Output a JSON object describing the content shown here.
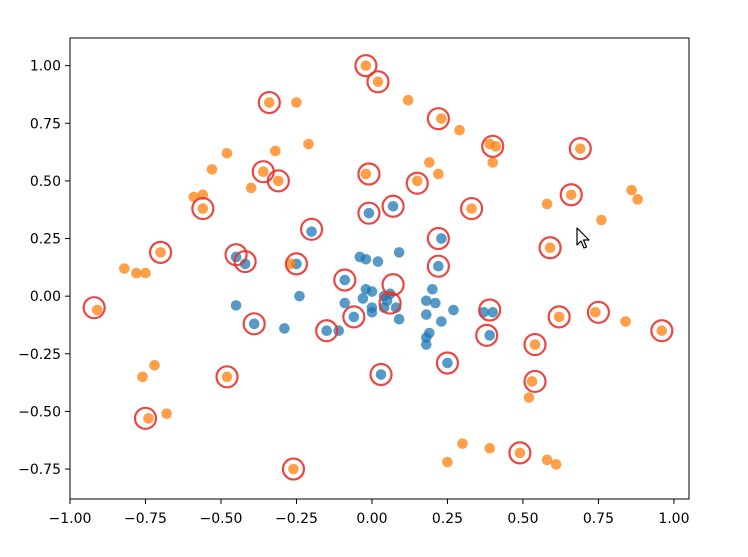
{
  "chart_data": {
    "type": "scatter",
    "title": "",
    "xlabel": "",
    "ylabel": "",
    "xlim": [
      -1.0,
      1.05
    ],
    "ylim": [
      -0.88,
      1.12
    ],
    "x_ticks": [
      -1.0,
      -0.75,
      -0.5,
      -0.25,
      0.0,
      0.25,
      0.5,
      0.75,
      1.0
    ],
    "x_tick_labels": [
      "−1.00",
      "−0.75",
      "−0.50",
      "−0.25",
      "0.00",
      "0.25",
      "0.50",
      "0.75",
      "1.00"
    ],
    "y_ticks": [
      -0.75,
      -0.5,
      -0.25,
      0.0,
      0.25,
      0.5,
      0.75,
      1.0
    ],
    "y_tick_labels": [
      "−0.75",
      "−0.50",
      "−0.25",
      "0.00",
      "0.25",
      "0.50",
      "0.75",
      "1.00"
    ],
    "colors": {
      "blue": "#1f77b4",
      "orange": "#ff7f0e",
      "ring": "#e8332e"
    },
    "series": [
      {
        "name": "blue",
        "color": "#1f77b4",
        "points": [
          [
            -0.45,
            0.17
          ],
          [
            -0.42,
            0.14
          ],
          [
            -0.39,
            -0.12
          ],
          [
            -0.45,
            -0.04
          ],
          [
            -0.25,
            0.14
          ],
          [
            -0.24,
            0.0
          ],
          [
            -0.29,
            -0.14
          ],
          [
            -0.2,
            0.28
          ],
          [
            -0.15,
            -0.15
          ],
          [
            -0.11,
            -0.15
          ],
          [
            -0.09,
            0.07
          ],
          [
            -0.09,
            -0.03
          ],
          [
            -0.06,
            -0.09
          ],
          [
            -0.04,
            0.17
          ],
          [
            -0.03,
            -0.01
          ],
          [
            -0.02,
            0.16
          ],
          [
            -0.01,
            0.36
          ],
          [
            -0.02,
            0.03
          ],
          [
            0.0,
            0.02
          ],
          [
            0.0,
            -0.05
          ],
          [
            0.0,
            -0.07
          ],
          [
            0.02,
            0.15
          ],
          [
            0.04,
            -0.05
          ],
          [
            0.04,
            0.0
          ],
          [
            0.05,
            -0.02
          ],
          [
            0.06,
            0.01
          ],
          [
            0.07,
            0.39
          ],
          [
            0.08,
            -0.05
          ],
          [
            0.09,
            -0.1
          ],
          [
            0.09,
            0.19
          ],
          [
            0.18,
            -0.08
          ],
          [
            0.18,
            -0.02
          ],
          [
            0.18,
            -0.18
          ],
          [
            0.18,
            -0.21
          ],
          [
            0.19,
            -0.16
          ],
          [
            0.2,
            0.03
          ],
          [
            0.21,
            -0.03
          ],
          [
            0.22,
            0.13
          ],
          [
            0.23,
            0.25
          ],
          [
            0.23,
            -0.11
          ],
          [
            0.25,
            -0.29
          ],
          [
            0.27,
            -0.06
          ],
          [
            0.37,
            -0.07
          ],
          [
            0.39,
            -0.17
          ],
          [
            0.4,
            -0.07
          ],
          [
            0.03,
            -0.34
          ]
        ]
      },
      {
        "name": "orange",
        "color": "#ff7f0e",
        "points": [
          [
            -0.91,
            -0.06
          ],
          [
            -0.82,
            0.12
          ],
          [
            -0.78,
            0.1
          ],
          [
            -0.76,
            -0.35
          ],
          [
            -0.75,
            0.1
          ],
          [
            -0.74,
            -0.53
          ],
          [
            -0.7,
            0.19
          ],
          [
            -0.72,
            -0.3
          ],
          [
            -0.68,
            -0.51
          ],
          [
            -0.59,
            0.43
          ],
          [
            -0.56,
            0.44
          ],
          [
            -0.56,
            0.38
          ],
          [
            -0.53,
            0.55
          ],
          [
            -0.48,
            0.62
          ],
          [
            -0.48,
            -0.35
          ],
          [
            -0.4,
            0.47
          ],
          [
            -0.36,
            0.54
          ],
          [
            -0.34,
            0.84
          ],
          [
            -0.31,
            0.5
          ],
          [
            -0.32,
            0.63
          ],
          [
            -0.27,
            0.14
          ],
          [
            -0.26,
            -0.75
          ],
          [
            -0.25,
            0.84
          ],
          [
            -0.21,
            0.66
          ],
          [
            -0.02,
            1.0
          ],
          [
            -0.02,
            0.53
          ],
          [
            0.02,
            0.93
          ],
          [
            0.12,
            0.85
          ],
          [
            0.15,
            0.5
          ],
          [
            0.19,
            0.58
          ],
          [
            0.22,
            0.53
          ],
          [
            0.23,
            0.77
          ],
          [
            0.25,
            -0.72
          ],
          [
            0.29,
            0.72
          ],
          [
            0.3,
            -0.64
          ],
          [
            0.33,
            0.38
          ],
          [
            0.39,
            0.66
          ],
          [
            0.39,
            -0.66
          ],
          [
            0.4,
            0.58
          ],
          [
            0.41,
            0.65
          ],
          [
            0.49,
            -0.68
          ],
          [
            0.52,
            -0.44
          ],
          [
            0.53,
            -0.37
          ],
          [
            0.54,
            -0.21
          ],
          [
            0.58,
            0.4
          ],
          [
            0.59,
            0.21
          ],
          [
            0.58,
            -0.71
          ],
          [
            0.61,
            -0.73
          ],
          [
            0.62,
            -0.09
          ],
          [
            0.66,
            0.44
          ],
          [
            0.69,
            0.64
          ],
          [
            0.74,
            -0.07
          ],
          [
            0.76,
            0.33
          ],
          [
            0.84,
            -0.11
          ],
          [
            0.86,
            0.46
          ],
          [
            0.88,
            0.42
          ],
          [
            0.96,
            -0.15
          ]
        ]
      }
    ],
    "highlighted": [
      [
        -0.92,
        -0.05
      ],
      [
        -0.7,
        0.19
      ],
      [
        -0.75,
        -0.53
      ],
      [
        -0.56,
        0.38
      ],
      [
        -0.48,
        -0.35
      ],
      [
        -0.45,
        0.18
      ],
      [
        -0.42,
        0.15
      ],
      [
        -0.39,
        -0.12
      ],
      [
        -0.34,
        0.84
      ],
      [
        -0.36,
        0.54
      ],
      [
        -0.31,
        0.5
      ],
      [
        -0.25,
        0.14
      ],
      [
        -0.26,
        -0.75
      ],
      [
        -0.2,
        0.29
      ],
      [
        -0.15,
        -0.15
      ],
      [
        -0.09,
        0.07
      ],
      [
        -0.06,
        -0.09
      ],
      [
        -0.02,
        1.0
      ],
      [
        -0.01,
        0.53
      ],
      [
        -0.01,
        0.36
      ],
      [
        0.02,
        0.93
      ],
      [
        0.07,
        0.39
      ],
      [
        0.07,
        0.05
      ],
      [
        0.06,
        -0.03
      ],
      [
        0.03,
        -0.34
      ],
      [
        0.15,
        0.49
      ],
      [
        0.22,
        0.77
      ],
      [
        0.22,
        0.25
      ],
      [
        0.22,
        0.13
      ],
      [
        0.25,
        -0.29
      ],
      [
        0.33,
        0.38
      ],
      [
        0.39,
        -0.06
      ],
      [
        0.38,
        -0.17
      ],
      [
        0.4,
        0.65
      ],
      [
        0.49,
        -0.68
      ],
      [
        0.54,
        -0.21
      ],
      [
        0.54,
        -0.37
      ],
      [
        0.59,
        0.21
      ],
      [
        0.62,
        -0.09
      ],
      [
        0.66,
        0.44
      ],
      [
        0.69,
        0.64
      ],
      [
        0.75,
        -0.07
      ],
      [
        0.96,
        -0.15
      ]
    ]
  },
  "cursor": {
    "icon": "mouse-pointer-icon"
  }
}
